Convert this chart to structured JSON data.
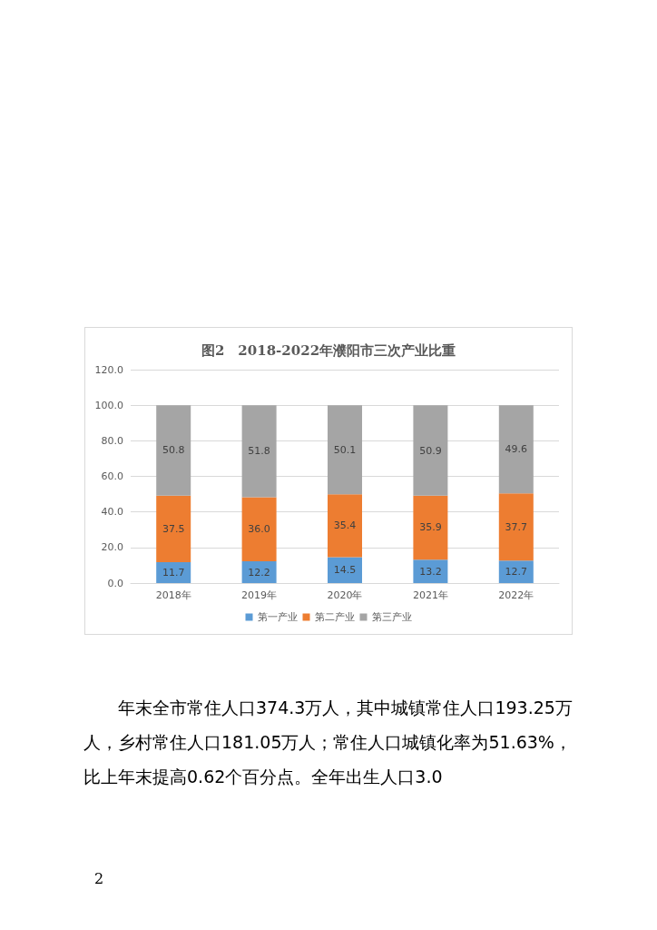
{
  "chart_data": {
    "type": "bar",
    "title": "图2　2018-2022年濮阳市三次产业比重",
    "categories": [
      "2018年",
      "2019年",
      "2020年",
      "2021年",
      "2022年"
    ],
    "stacked": true,
    "series": [
      {
        "name": "第一产业",
        "color": "#5b9bd5",
        "values": [
          11.7,
          12.2,
          14.5,
          13.2,
          12.7
        ],
        "value_labels": [
          "11.7",
          "12.2",
          "14.5",
          "13.2",
          "12.7"
        ]
      },
      {
        "name": "第二产业",
        "color": "#ed7d31",
        "values": [
          37.5,
          36.0,
          35.4,
          35.9,
          37.7
        ],
        "value_labels": [
          "37.5",
          "36.0",
          "35.4",
          "35.9",
          "37.7"
        ]
      },
      {
        "name": "第三产业",
        "color": "#a5a5a5",
        "values": [
          50.8,
          51.8,
          50.1,
          50.9,
          49.6
        ],
        "value_labels": [
          "50.8",
          "51.8",
          "50.1",
          "50.9",
          "49.6"
        ]
      }
    ],
    "ylim": [
      0,
      120
    ],
    "yticks": [
      {
        "value": 0,
        "label": "0.0"
      },
      {
        "value": 20,
        "label": "20.0"
      },
      {
        "value": 40,
        "label": "40.0"
      },
      {
        "value": 60,
        "label": "60.0"
      },
      {
        "value": 80,
        "label": "80.0"
      },
      {
        "value": 100,
        "label": "100.0"
      },
      {
        "value": 120,
        "label": "120.0"
      }
    ],
    "grid": "y",
    "legend": "bottom",
    "annotations": [
      "年末全市常住人口374.3万人，其中城镇常住人口193.25万人，乡村常住人口181.05万人；常住人口城镇化率为51.63%，比上年末提高0.62个百分点。全年出生人口3.0",
      "2"
    ]
  }
}
